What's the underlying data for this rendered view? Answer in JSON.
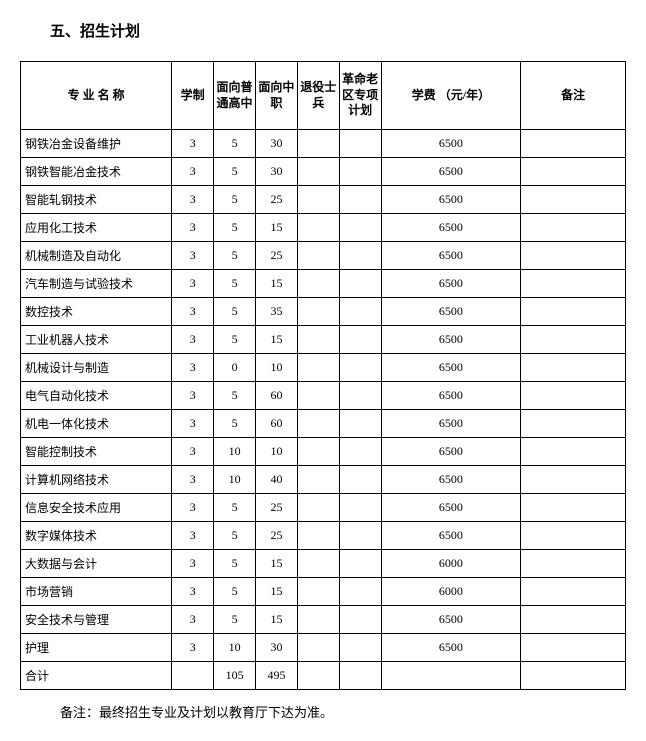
{
  "section_title": "五、招生计划",
  "headers": {
    "name": "专 业 名 称",
    "xuezhi": "学制",
    "gaozhong": "面向普通高中",
    "zhongzhi": "面向中职",
    "tuiyi": "退役士兵",
    "geming": "革命老区专项计划",
    "fee": "学费\n（元/年）",
    "remark": "备注"
  },
  "rows": [
    {
      "name": "钢铁冶金设备维护",
      "xuezhi": "3",
      "gaozhong": "5",
      "zhongzhi": "30",
      "tuiyi": "",
      "geming": "",
      "fee": "6500",
      "remark": ""
    },
    {
      "name": "钢铁智能冶金技术",
      "xuezhi": "3",
      "gaozhong": "5",
      "zhongzhi": "30",
      "tuiyi": "",
      "geming": "",
      "fee": "6500",
      "remark": ""
    },
    {
      "name": "智能轧钢技术",
      "xuezhi": "3",
      "gaozhong": "5",
      "zhongzhi": "25",
      "tuiyi": "",
      "geming": "",
      "fee": "6500",
      "remark": ""
    },
    {
      "name": "应用化工技术",
      "xuezhi": "3",
      "gaozhong": "5",
      "zhongzhi": "15",
      "tuiyi": "",
      "geming": "",
      "fee": "6500",
      "remark": ""
    },
    {
      "name": "机械制造及自动化",
      "xuezhi": "3",
      "gaozhong": "5",
      "zhongzhi": "25",
      "tuiyi": "",
      "geming": "",
      "fee": "6500",
      "remark": ""
    },
    {
      "name": "汽车制造与试验技术",
      "xuezhi": "3",
      "gaozhong": "5",
      "zhongzhi": "15",
      "tuiyi": "",
      "geming": "",
      "fee": "6500",
      "remark": ""
    },
    {
      "name": "数控技术",
      "xuezhi": "3",
      "gaozhong": "5",
      "zhongzhi": "35",
      "tuiyi": "",
      "geming": "",
      "fee": "6500",
      "remark": ""
    },
    {
      "name": "工业机器人技术",
      "xuezhi": "3",
      "gaozhong": "5",
      "zhongzhi": "15",
      "tuiyi": "",
      "geming": "",
      "fee": "6500",
      "remark": ""
    },
    {
      "name": "机械设计与制造",
      "xuezhi": "3",
      "gaozhong": "0",
      "zhongzhi": "10",
      "tuiyi": "",
      "geming": "",
      "fee": "6500",
      "remark": ""
    },
    {
      "name": "电气自动化技术",
      "xuezhi": "3",
      "gaozhong": "5",
      "zhongzhi": "60",
      "tuiyi": "",
      "geming": "",
      "fee": "6500",
      "remark": ""
    },
    {
      "name": "机电一体化技术",
      "xuezhi": "3",
      "gaozhong": "5",
      "zhongzhi": "60",
      "tuiyi": "",
      "geming": "",
      "fee": "6500",
      "remark": ""
    },
    {
      "name": "智能控制技术",
      "xuezhi": "3",
      "gaozhong": "10",
      "zhongzhi": "10",
      "tuiyi": "",
      "geming": "",
      "fee": "6500",
      "remark": ""
    },
    {
      "name": "计算机网络技术",
      "xuezhi": "3",
      "gaozhong": "10",
      "zhongzhi": "40",
      "tuiyi": "",
      "geming": "",
      "fee": "6500",
      "remark": ""
    },
    {
      "name": "信息安全技术应用",
      "xuezhi": "3",
      "gaozhong": "5",
      "zhongzhi": "25",
      "tuiyi": "",
      "geming": "",
      "fee": "6500",
      "remark": ""
    },
    {
      "name": "数字媒体技术",
      "xuezhi": "3",
      "gaozhong": "5",
      "zhongzhi": "25",
      "tuiyi": "",
      "geming": "",
      "fee": "6500",
      "remark": ""
    },
    {
      "name": "大数据与会计",
      "xuezhi": "3",
      "gaozhong": "5",
      "zhongzhi": "15",
      "tuiyi": "",
      "geming": "",
      "fee": "6000",
      "remark": ""
    },
    {
      "name": "市场营销",
      "xuezhi": "3",
      "gaozhong": "5",
      "zhongzhi": "15",
      "tuiyi": "",
      "geming": "",
      "fee": "6000",
      "remark": ""
    },
    {
      "name": "安全技术与管理",
      "xuezhi": "3",
      "gaozhong": "5",
      "zhongzhi": "15",
      "tuiyi": "",
      "geming": "",
      "fee": "6500",
      "remark": ""
    },
    {
      "name": "护理",
      "xuezhi": "3",
      "gaozhong": "10",
      "zhongzhi": "30",
      "tuiyi": "",
      "geming": "",
      "fee": "6500",
      "remark": ""
    }
  ],
  "total": {
    "name": "合计",
    "xuezhi": "",
    "gaozhong": "105",
    "zhongzhi": "495",
    "tuiyi": "",
    "geming": "",
    "fee": "",
    "remark": ""
  },
  "note": "备注：最终招生专业及计划以教育厅下达为准。"
}
